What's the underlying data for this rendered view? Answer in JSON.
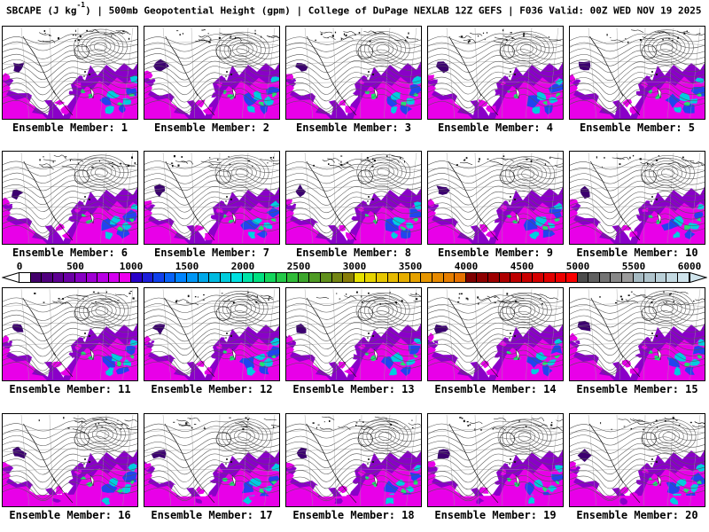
{
  "header": {
    "title_prefix": "SBCAPE (J kg",
    "title_sup": "-1",
    "title_suffix": ") | 500mb Geopotential Height (gpm) | College of DuPage NEXLAB 12Z GEFS | F036 Valid: 00Z WED NOV 19 2025"
  },
  "panels": [
    {
      "label": "Ensemble Member: 1"
    },
    {
      "label": "Ensemble Member: 2"
    },
    {
      "label": "Ensemble Member: 3"
    },
    {
      "label": "Ensemble Member: 4"
    },
    {
      "label": "Ensemble Member: 5"
    },
    {
      "label": "Ensemble Member: 6"
    },
    {
      "label": "Ensemble Member: 7"
    },
    {
      "label": "Ensemble Member: 8"
    },
    {
      "label": "Ensemble Member: 9"
    },
    {
      "label": "Ensemble Member: 10"
    },
    {
      "label": "Ensemble Member: 11"
    },
    {
      "label": "Ensemble Member: 12"
    },
    {
      "label": "Ensemble Member: 13"
    },
    {
      "label": "Ensemble Member: 14"
    },
    {
      "label": "Ensemble Member: 15"
    },
    {
      "label": "Ensemble Member: 16"
    },
    {
      "label": "Ensemble Member: 17"
    },
    {
      "label": "Ensemble Member: 18"
    },
    {
      "label": "Ensemble Member: 19"
    },
    {
      "label": "Ensemble Member: 20"
    }
  ],
  "colorbar": {
    "ticks": [
      "0",
      "500",
      "1000",
      "1500",
      "2000",
      "2500",
      "3000",
      "3500",
      "4000",
      "4500",
      "5000",
      "5500",
      "6000"
    ],
    "left_arrow": "#FFFFFF",
    "right_arrow": "#D0E4EC",
    "segments": [
      "#FFFFFF",
      "#42006A",
      "#50007E",
      "#5E0092",
      "#6C00A6",
      "#8800C4",
      "#A000D4",
      "#B800E4",
      "#D400F0",
      "#EE00EE",
      "#2800C8",
      "#1C1EDA",
      "#1040EC",
      "#0862F8",
      "#0084FF",
      "#0096F4",
      "#00A8E8",
      "#00BAE0",
      "#00CCDC",
      "#00E0E0",
      "#00E4A8",
      "#00E080",
      "#14D65C",
      "#24C848",
      "#30BC38",
      "#3CA62C",
      "#4E9A24",
      "#60901C",
      "#748614",
      "#887E08",
      "#E6E200",
      "#E6D400",
      "#E6C600",
      "#E6BA00",
      "#E6AE00",
      "#E6A200",
      "#E69600",
      "#E68A00",
      "#E67E00",
      "#E67200",
      "#7E0000",
      "#8E0000",
      "#9E0000",
      "#AE0000",
      "#BE0000",
      "#CA0000",
      "#D60000",
      "#E20000",
      "#EE0000",
      "#FA0000",
      "#4C4C4C",
      "#606060",
      "#747474",
      "#888888",
      "#9C9C9C",
      "#A6BAC2",
      "#B0C4CC",
      "#BAD0D8",
      "#C4DAE2",
      "#D0E4EC"
    ]
  },
  "map_palette": {
    "magenta": "#E800E8",
    "purple": "#8A00C8",
    "dark_purple": "#3C0070",
    "blue": "#2244EE",
    "cyan": "#00CCE0",
    "green": "#22E070",
    "contour": "#555555",
    "coast": "#111111",
    "graticule": "#9A9A9A"
  }
}
